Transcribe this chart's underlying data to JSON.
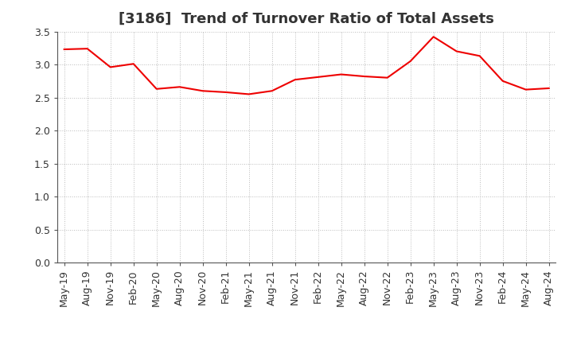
{
  "title": "[3186]  Trend of Turnover Ratio of Total Assets",
  "x_labels": [
    "May-19",
    "Aug-19",
    "Nov-19",
    "Feb-20",
    "May-20",
    "Aug-20",
    "Nov-20",
    "Feb-21",
    "May-21",
    "Aug-21",
    "Nov-21",
    "Feb-22",
    "May-22",
    "Aug-22",
    "Nov-22",
    "Feb-23",
    "May-23",
    "Aug-23",
    "Nov-23",
    "Feb-24",
    "May-24",
    "Aug-24"
  ],
  "values": [
    3.23,
    3.24,
    2.96,
    3.01,
    2.63,
    2.66,
    2.6,
    2.58,
    2.55,
    2.6,
    2.77,
    2.81,
    2.85,
    2.82,
    2.8,
    3.05,
    3.42,
    3.2,
    3.13,
    2.75,
    2.62,
    2.64
  ],
  "line_color": "#ee0000",
  "line_width": 1.5,
  "ylim": [
    0.0,
    3.5
  ],
  "yticks": [
    0.0,
    0.5,
    1.0,
    1.5,
    2.0,
    2.5,
    3.0,
    3.5
  ],
  "grid_color": "#aaaaaa",
  "background_color": "#ffffff",
  "title_fontsize": 13,
  "tick_fontsize": 9,
  "title_color": "#333333"
}
